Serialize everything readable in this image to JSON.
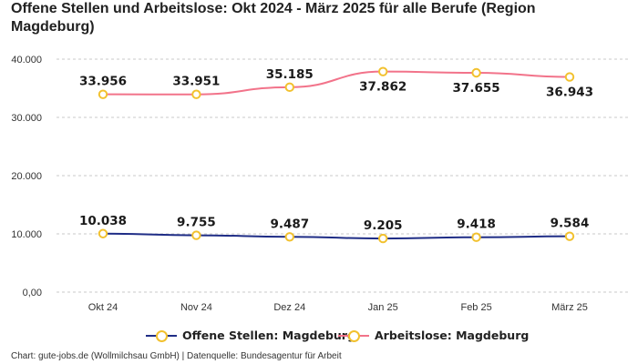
{
  "title": "Offene Stellen und Arbeitslose: Okt 2024 - März 2025 für alle Berufe (Region Magdeburg)",
  "footer": "Chart: gute-jobs.de (Wollmilchsau GmbH) | Datenquelle: Bundesagentur für Arbeit",
  "chart_data": {
    "type": "line",
    "title": "Offene Stellen und Arbeitslose: Okt 2024 - März 2025 für alle Berufe (Region Magdeburg)",
    "xlabel": "",
    "ylabel": "",
    "categories": [
      "Okt 24",
      "Nov 24",
      "Dez 24",
      "Jan 25",
      "Feb 25",
      "März 25"
    ],
    "ylim": [
      0,
      40000
    ],
    "y_ticks": [
      0,
      10000,
      20000,
      30000,
      40000
    ],
    "y_tick_labels": [
      "0,00",
      "10.000",
      "20.000",
      "30.000",
      "40.000"
    ],
    "grid": "horizontal dashed",
    "legend_position": "bottom",
    "series": [
      {
        "name": "Offene Stellen: Magdeburg",
        "values": [
          10038,
          9755,
          9487,
          9205,
          9418,
          9584
        ],
        "labels": [
          "10.038",
          "9.755",
          "9.487",
          "9.205",
          "9.418",
          "9.584"
        ],
        "color": "#1f2d86",
        "marker_color": "#f2c12e"
      },
      {
        "name": "Arbeitslose: Magdeburg",
        "values": [
          33956,
          33951,
          35185,
          37862,
          37655,
          36943
        ],
        "labels": [
          "33.956",
          "33.951",
          "35.185",
          "37.862",
          "37.655",
          "36.943"
        ],
        "color": "#f2738a",
        "marker_color": "#f2c12e"
      }
    ]
  }
}
